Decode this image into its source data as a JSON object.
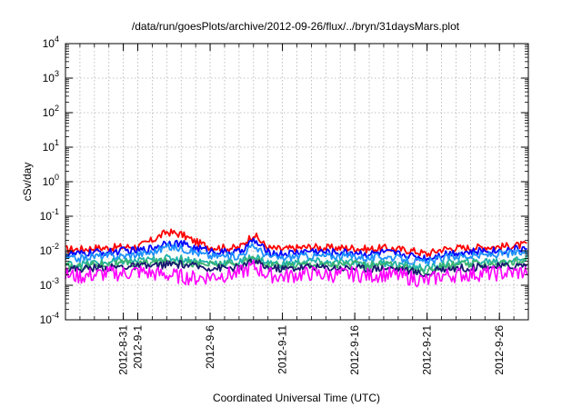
{
  "chart_data": {
    "type": "line",
    "title": "/data/run/goesPlots/archive/2012-09-26/flux/../bryn/31daysMars.plot",
    "xlabel": "Coordinated Universal Time (UTC)",
    "ylabel": "cSv/day",
    "yscale": "log",
    "ylim": [
      0.0001,
      10000
    ],
    "xlim": [
      "2012-08-27",
      "2012-09-28"
    ],
    "grid": true,
    "y_ticks": [
      {
        "base": "10",
        "exp": "-4"
      },
      {
        "base": "10",
        "exp": "-3"
      },
      {
        "base": "10",
        "exp": "-2"
      },
      {
        "base": "10",
        "exp": "-1"
      },
      {
        "base": "10",
        "exp": "0"
      },
      {
        "base": "10",
        "exp": "1"
      },
      {
        "base": "10",
        "exp": "2"
      },
      {
        "base": "10",
        "exp": "3"
      },
      {
        "base": "10",
        "exp": "4"
      }
    ],
    "x_ticks": [
      {
        "date": "2012-08-31",
        "label": "2012-8-31"
      },
      {
        "date": "2012-09-01",
        "label": "2012-9-1"
      },
      {
        "date": "2012-09-06",
        "label": "2012-9-6"
      },
      {
        "date": "2012-09-11",
        "label": "2012-9-11"
      },
      {
        "date": "2012-09-16",
        "label": "2012-9-16"
      },
      {
        "date": "2012-09-21",
        "label": "2012-9-21"
      },
      {
        "date": "2012-09-26",
        "label": "2012-9-26"
      }
    ],
    "x_grid_dates": [
      "2012-08-28",
      "2012-08-29",
      "2012-08-30",
      "2012-08-31",
      "2012-09-01",
      "2012-09-02",
      "2012-09-03",
      "2012-09-04",
      "2012-09-05",
      "2012-09-06",
      "2012-09-07",
      "2012-09-08",
      "2012-09-09",
      "2012-09-10",
      "2012-09-11",
      "2012-09-12",
      "2012-09-13",
      "2012-09-14",
      "2012-09-15",
      "2012-09-16",
      "2012-09-17",
      "2012-09-18",
      "2012-09-19",
      "2012-09-20",
      "2012-09-21",
      "2012-09-22",
      "2012-09-23",
      "2012-09-24",
      "2012-09-25",
      "2012-09-26",
      "2012-09-27"
    ],
    "x": [
      "2012-08-27",
      "2012-08-28",
      "2012-08-29",
      "2012-08-30",
      "2012-08-31",
      "2012-09-01",
      "2012-09-02",
      "2012-09-03",
      "2012-09-04",
      "2012-09-05",
      "2012-09-06",
      "2012-09-07",
      "2012-09-08",
      "2012-09-09",
      "2012-09-10",
      "2012-09-11",
      "2012-09-12",
      "2012-09-13",
      "2012-09-14",
      "2012-09-15",
      "2012-09-16",
      "2012-09-17",
      "2012-09-18",
      "2012-09-19",
      "2012-09-20",
      "2012-09-21",
      "2012-09-22",
      "2012-09-23",
      "2012-09-24",
      "2012-09-25",
      "2012-09-26",
      "2012-09-27",
      "2012-09-28"
    ],
    "series": [
      {
        "color": "#ff0000",
        "values": [
          0.011,
          0.011,
          0.012,
          0.012,
          0.013,
          0.013,
          0.02,
          0.035,
          0.03,
          0.018,
          0.013,
          0.012,
          0.012,
          0.03,
          0.012,
          0.011,
          0.012,
          0.013,
          0.012,
          0.012,
          0.012,
          0.011,
          0.012,
          0.011,
          0.01,
          0.008,
          0.011,
          0.012,
          0.012,
          0.013,
          0.013,
          0.014,
          0.015
        ]
      },
      {
        "color": "#0000ff",
        "values": [
          0.008,
          0.008,
          0.009,
          0.009,
          0.01,
          0.01,
          0.012,
          0.018,
          0.016,
          0.012,
          0.01,
          0.009,
          0.009,
          0.02,
          0.009,
          0.008,
          0.009,
          0.01,
          0.009,
          0.009,
          0.009,
          0.008,
          0.009,
          0.008,
          0.007,
          0.006,
          0.008,
          0.009,
          0.009,
          0.01,
          0.01,
          0.011,
          0.012
        ]
      },
      {
        "color": "#1e90ff",
        "values": [
          0.006,
          0.006,
          0.007,
          0.007,
          0.007,
          0.008,
          0.009,
          0.013,
          0.012,
          0.009,
          0.007,
          0.007,
          0.007,
          0.014,
          0.007,
          0.006,
          0.007,
          0.007,
          0.007,
          0.007,
          0.007,
          0.006,
          0.007,
          0.006,
          0.005,
          0.0045,
          0.006,
          0.007,
          0.007,
          0.0075,
          0.008,
          0.0085,
          0.009
        ]
      },
      {
        "color": "#20b2aa",
        "values": [
          0.004,
          0.004,
          0.0045,
          0.0045,
          0.005,
          0.005,
          0.0055,
          0.006,
          0.006,
          0.005,
          0.0045,
          0.0045,
          0.0045,
          0.007,
          0.0045,
          0.004,
          0.0045,
          0.005,
          0.0045,
          0.0045,
          0.0045,
          0.004,
          0.0045,
          0.004,
          0.0035,
          0.003,
          0.004,
          0.0045,
          0.0045,
          0.005,
          0.005,
          0.0055,
          0.006
        ]
      },
      {
        "color": "#3cb371",
        "values": [
          0.0035,
          0.0035,
          0.004,
          0.004,
          0.0042,
          0.0042,
          0.0045,
          0.005,
          0.005,
          0.0042,
          0.004,
          0.004,
          0.004,
          0.006,
          0.004,
          0.0035,
          0.004,
          0.0042,
          0.004,
          0.004,
          0.004,
          0.0035,
          0.004,
          0.0035,
          0.003,
          0.0025,
          0.0035,
          0.004,
          0.004,
          0.0042,
          0.0042,
          0.0045,
          0.005
        ]
      },
      {
        "color": "#191970",
        "values": [
          0.003,
          0.003,
          0.0032,
          0.0032,
          0.0035,
          0.0035,
          0.0036,
          0.004,
          0.004,
          0.0035,
          0.0032,
          0.0032,
          0.0032,
          0.005,
          0.0032,
          0.003,
          0.0032,
          0.0035,
          0.0032,
          0.0032,
          0.0032,
          0.003,
          0.0032,
          0.003,
          0.0025,
          0.002,
          0.003,
          0.0032,
          0.0032,
          0.0035,
          0.0035,
          0.0036,
          0.004
        ]
      },
      {
        "color": "#ff00ff",
        "values": [
          0.002,
          0.0018,
          0.002,
          0.0022,
          0.0022,
          0.0025,
          0.0022,
          0.002,
          0.0018,
          0.0016,
          0.0018,
          0.002,
          0.0022,
          0.0035,
          0.002,
          0.0018,
          0.002,
          0.0022,
          0.002,
          0.002,
          0.0021,
          0.0019,
          0.0021,
          0.0019,
          0.0016,
          0.0013,
          0.0019,
          0.002,
          0.0021,
          0.0022,
          0.0022,
          0.0023,
          0.0025
        ]
      }
    ]
  }
}
